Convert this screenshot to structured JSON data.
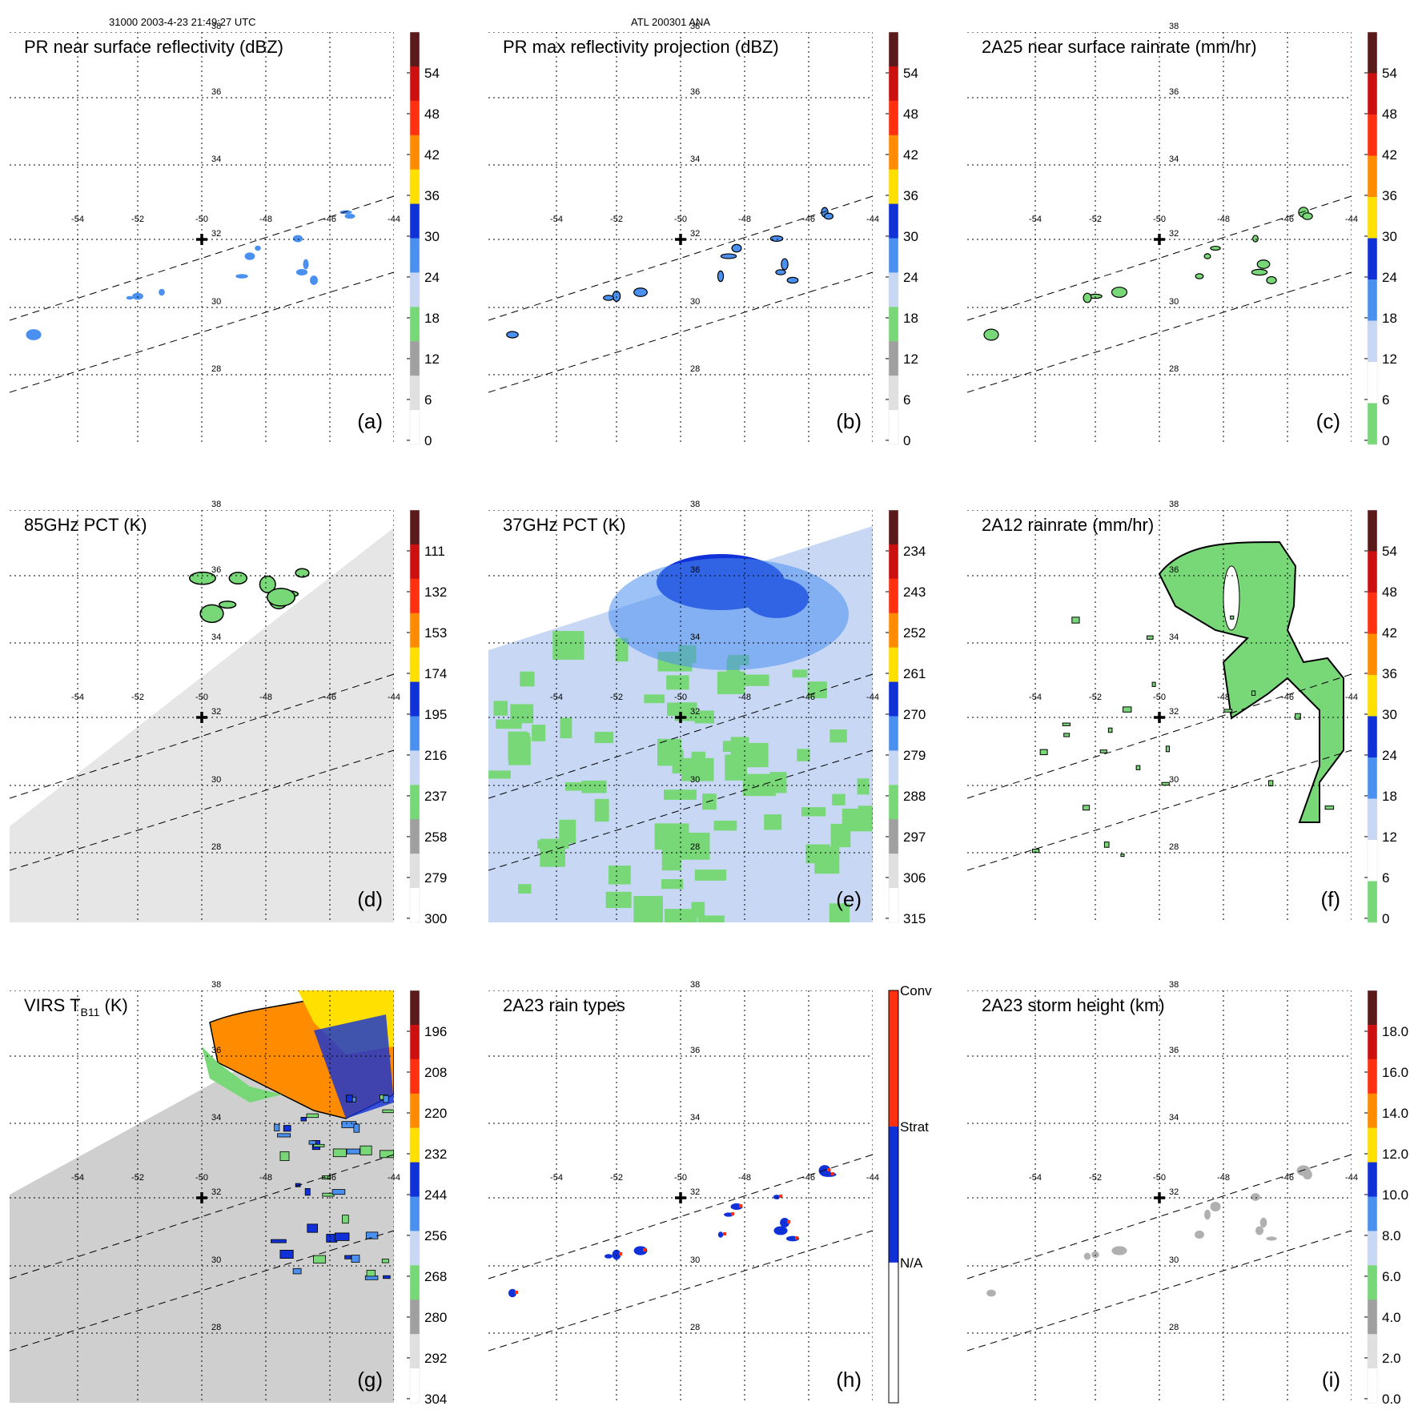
{
  "header": {
    "left": "31000 2003-4-23 21:49:27 UTC",
    "center": "ATL 200301 ANA"
  },
  "map": {
    "lat_labels": [
      "38",
      "36",
      "34",
      "32",
      "30",
      "28"
    ],
    "lon_labels": [
      "-54",
      "-52",
      "-50",
      "-48",
      "-46",
      "-44"
    ],
    "marker": {
      "lon": -50,
      "lat": 32
    }
  },
  "colors": {
    "dark_red": "#5a1a1a",
    "red": "#cc1010",
    "red_orange": "#ff3010",
    "orange": "#ff8c00",
    "yellow": "#ffe000",
    "dark_blue": "#1030d8",
    "mid_blue": "#4a90f0",
    "light_blue": "#c8d8f4",
    "green": "#78d878",
    "gray": "#a0a0a0",
    "light_gray": "#e0e0e0",
    "white": "#ffffff"
  },
  "panels": [
    {
      "title": "PR near surface reflectivity (dBZ)",
      "letter": "(a)",
      "ticks": [
        "54",
        "48",
        "42",
        "36",
        "30",
        "24",
        "18",
        "12",
        "6",
        "0"
      ]
    },
    {
      "title": "PR max reflectivity projection (dBZ)",
      "letter": "(b)",
      "ticks": [
        "54",
        "48",
        "42",
        "36",
        "30",
        "24",
        "18",
        "12",
        "6",
        "0"
      ]
    },
    {
      "title": "2A25 near surface rainrate (mm/hr)",
      "letter": "(c)",
      "ticks": [
        "54",
        "48",
        "42",
        "36",
        "30",
        "24",
        "18",
        "12",
        "6",
        "0"
      ]
    },
    {
      "title": "85GHz PCT (K)",
      "letter": "(d)",
      "ticks": [
        "111",
        "132",
        "153",
        "174",
        "195",
        "216",
        "237",
        "258",
        "279",
        "300"
      ]
    },
    {
      "title": "37GHz PCT (K)",
      "letter": "(e)",
      "ticks": [
        "234",
        "243",
        "252",
        "261",
        "270",
        "279",
        "288",
        "297",
        "306",
        "315"
      ]
    },
    {
      "title": "2A12 rainrate (mm/hr)",
      "letter": "(f)",
      "ticks": [
        "54",
        "48",
        "42",
        "36",
        "30",
        "24",
        "18",
        "12",
        "6",
        "0"
      ]
    },
    {
      "title_main": "VIRS T",
      "title_sub": "B11",
      "title_unit": " (K)",
      "letter": "(g)",
      "ticks": [
        "196",
        "208",
        "220",
        "232",
        "244",
        "256",
        "268",
        "280",
        "292",
        "304"
      ]
    },
    {
      "title": "2A23 rain types",
      "letter": "(h)",
      "ticks": [
        "Conv",
        "Strat",
        "N/A"
      ]
    },
    {
      "title": "2A23 storm height (km)",
      "letter": "(i)",
      "ticks": [
        "18.0",
        "16.0",
        "14.0",
        "12.0",
        "10.0",
        "8.0",
        "6.0",
        "4.0",
        "2.0",
        "0.0"
      ]
    }
  ]
}
